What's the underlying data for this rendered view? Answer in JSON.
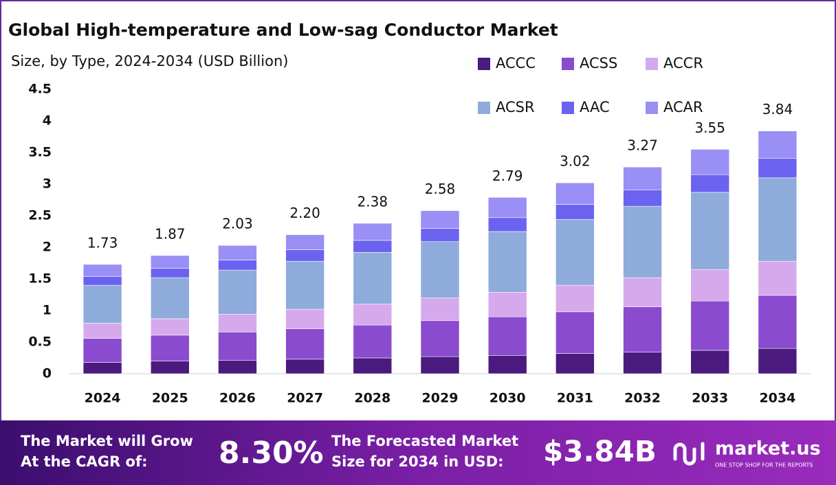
{
  "chart_data": {
    "type": "stacked_bar",
    "title": "Global High-temperature and Low-sag Conductor Market",
    "subtitle": "Size, by Type, 2024-2034 (USD Billion)",
    "categories": [
      "2024",
      "2025",
      "2026",
      "2027",
      "2028",
      "2029",
      "2030",
      "2031",
      "2032",
      "2033",
      "2034"
    ],
    "series": [
      {
        "name": "ACCC",
        "color": "#4b1a7e",
        "values": [
          0.18,
          0.2,
          0.21,
          0.23,
          0.25,
          0.27,
          0.29,
          0.32,
          0.34,
          0.37,
          0.4
        ]
      },
      {
        "name": "ACSS",
        "color": "#8a4bcf",
        "values": [
          0.38,
          0.41,
          0.45,
          0.48,
          0.52,
          0.57,
          0.61,
          0.66,
          0.72,
          0.78,
          0.84
        ]
      },
      {
        "name": "ACCR",
        "color": "#d6a9ec",
        "values": [
          0.24,
          0.26,
          0.28,
          0.31,
          0.33,
          0.36,
          0.39,
          0.42,
          0.46,
          0.5,
          0.54
        ]
      },
      {
        "name": "ACSR",
        "color": "#8fabdc",
        "values": [
          0.6,
          0.65,
          0.7,
          0.76,
          0.82,
          0.89,
          0.96,
          1.04,
          1.13,
          1.22,
          1.32
        ]
      },
      {
        "name": "AAC",
        "color": "#6b63f0",
        "values": [
          0.14,
          0.15,
          0.16,
          0.18,
          0.19,
          0.21,
          0.22,
          0.24,
          0.26,
          0.28,
          0.31
        ]
      },
      {
        "name": "ACAR",
        "color": "#9a8ff5",
        "values": [
          0.19,
          0.2,
          0.23,
          0.24,
          0.27,
          0.28,
          0.32,
          0.34,
          0.36,
          0.4,
          0.43
        ]
      }
    ],
    "totals": [
      1.73,
      1.87,
      2.03,
      2.2,
      2.38,
      2.58,
      2.79,
      3.02,
      3.27,
      3.55,
      3.84
    ],
    "totals_labels": [
      "1.73",
      "1.87",
      "2.03",
      "2.20",
      "2.38",
      "2.58",
      "2.79",
      "3.02",
      "3.27",
      "3.55",
      "3.84"
    ],
    "ylim": [
      0,
      4.5
    ],
    "yticks": [
      0,
      0.5,
      1,
      1.5,
      2,
      2.5,
      3,
      3.5,
      4,
      4.5
    ],
    "grid": false,
    "legend": "top-right"
  },
  "footer": {
    "cagr_text": [
      "The Market will Grow",
      "At the CAGR of:"
    ],
    "cagr": "8.30%",
    "forecast_text": [
      "The Forecasted Market",
      "Size for 2034 in USD:"
    ],
    "forecast": "$3.84B",
    "logo": "market.us",
    "tagline": "ONE STOP SHOP FOR THE REPORTS"
  }
}
